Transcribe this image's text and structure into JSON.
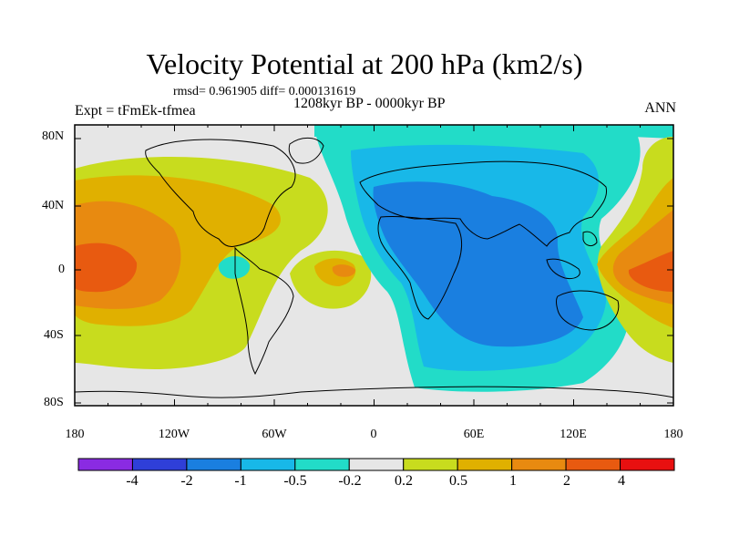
{
  "title": "Velocity Potential at 200 hPa (km2/s)",
  "stats_line": "rmsd= 0.961905  diff= 0.000131619",
  "period_line": "1208kyr BP - 0000kyr BP",
  "experiment": "Expt = tFmEk-tfmea",
  "season": "ANN",
  "lat_labels": [
    "80N",
    "40N",
    "0",
    "40S",
    "80S"
  ],
  "lon_labels": [
    "180",
    "120W",
    "60W",
    "0",
    "60E",
    "120E",
    "180"
  ],
  "colorbar": {
    "labels": [
      "-4",
      "-2",
      "-1",
      "-0.5",
      "-0.2",
      "0.2",
      "0.5",
      "1",
      "2",
      "4"
    ],
    "colors": [
      "#8a2be2",
      "#2f3fd8",
      "#1a7fe0",
      "#18b8e8",
      "#22dcc8",
      "#e6e6e6",
      "#c8dc1e",
      "#e0b000",
      "#e88a10",
      "#e85a10",
      "#e81010"
    ]
  },
  "field_colors": {
    "neutral": "#e6e6e6",
    "cyan": "#22dcc8",
    "light_blue": "#18b8e8",
    "blue": "#1a7fe0",
    "yellow_green": "#c8dc1e",
    "gold": "#e0b000",
    "orange": "#e88a10",
    "red_orange": "#e85a10"
  }
}
